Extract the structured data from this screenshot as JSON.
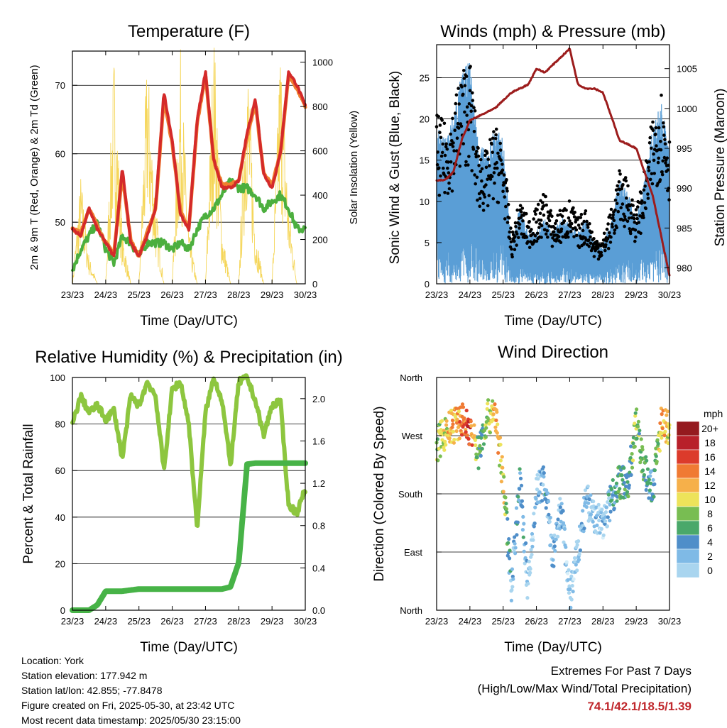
{
  "x_ticks": [
    "23/23",
    "24/23",
    "25/23",
    "26/23",
    "27/23",
    "28/23",
    "29/23",
    "30/23"
  ],
  "colors": {
    "t2m": "#d42a2a",
    "t9m": "#f07f2f",
    "td": "#4caf3e",
    "solar": "#f5d65a",
    "wind": "#5a9ed6",
    "gust": "#000000",
    "pressure": "#9c1c1c",
    "rh": "#8dc63f",
    "precip": "#47b347"
  },
  "info": {
    "location": "Location: York",
    "elevation": "Station elevation: 177.942 m",
    "latlon": "Station lat/lon: 42.855; -77.8478",
    "created": "Figure created on Fri, 2025-05-30, at 23:42 UTC",
    "timestamp": "Most recent data timestamp: 2025/05/30 23:15:00"
  },
  "extremes": {
    "title": "Extremes For Past 7 Days",
    "subtitle": "(High/Low/Max Wind/Total Precipitation)",
    "value": "74.1/42.1/18.5/1.39"
  },
  "chart_data": [
    {
      "type": "line",
      "title": "Temperature (F)",
      "xlabel": "Time (Day/UTC)",
      "ylabel": "2m & 9m T (Red, Orange) & 2m Td (Green)",
      "ylabel_right": "Solar Insolation (Yellow)",
      "x": [
        0,
        0.25,
        0.5,
        0.75,
        1.0,
        1.25,
        1.5,
        1.75,
        2.0,
        2.25,
        2.5,
        2.75,
        3.0,
        3.25,
        3.5,
        3.75,
        4.0,
        4.25,
        4.5,
        4.75,
        5.0,
        5.25,
        5.5,
        5.75,
        6.0,
        6.25,
        6.5,
        6.75,
        7.0
      ],
      "ylim": [
        41,
        75
      ],
      "ylim_right": [
        0,
        1050
      ],
      "yticks": [
        50,
        60,
        70
      ],
      "yticks_right": [
        0,
        200,
        400,
        600,
        800,
        1000
      ],
      "series": [
        {
          "name": "2m T",
          "values": [
            49,
            48,
            52,
            49,
            47,
            45,
            58,
            47,
            45,
            48,
            52,
            69,
            62,
            51,
            49,
            65,
            72,
            59,
            55,
            55,
            56,
            63,
            68,
            57,
            55,
            60,
            72,
            70,
            67
          ]
        },
        {
          "name": "9m T",
          "values": [
            49,
            48.5,
            52,
            49.5,
            47,
            45.5,
            57,
            47.5,
            45,
            48.5,
            52,
            68,
            61.5,
            51.5,
            49,
            64.5,
            71.5,
            59,
            55.5,
            55.5,
            56,
            62.5,
            67.5,
            57,
            55.5,
            60,
            71.5,
            69.5,
            67
          ]
        },
        {
          "name": "2m Td",
          "values": [
            43,
            46,
            48,
            50,
            46,
            44,
            48,
            47,
            45,
            47,
            47,
            47,
            46,
            47,
            46,
            49,
            51,
            52,
            54,
            56,
            55,
            55,
            54,
            52,
            53,
            54,
            52,
            49,
            49
          ]
        },
        {
          "name": "Solar Insolation",
          "values": [
            0,
            400,
            100,
            0,
            0,
            850,
            200,
            0,
            0,
            850,
            300,
            0,
            0,
            850,
            200,
            0,
            0,
            950,
            200,
            0,
            0,
            900,
            200,
            0,
            0,
            900,
            300,
            0,
            0
          ]
        }
      ]
    },
    {
      "type": "scatter",
      "title": "Winds (mph) & Pressure (mb)",
      "xlabel": "Time (Day/UTC)",
      "ylabel": "Sonic Wind & Gust (Blue, Black)",
      "ylabel_right": "Station Pressure (Maroon)",
      "x": [
        0,
        0.25,
        0.5,
        0.75,
        1.0,
        1.25,
        1.5,
        1.75,
        2.0,
        2.25,
        2.5,
        2.75,
        3.0,
        3.25,
        3.5,
        3.75,
        4.0,
        4.25,
        4.5,
        4.75,
        5.0,
        5.25,
        5.5,
        5.75,
        6.0,
        6.25,
        6.5,
        6.75,
        7.0
      ],
      "ylim": [
        0,
        29
      ],
      "ylim_right": [
        978,
        1008
      ],
      "yticks": [
        0,
        5,
        10,
        15,
        20,
        25
      ],
      "yticks_right": [
        980,
        985,
        990,
        995,
        1000,
        1005
      ],
      "series": [
        {
          "name": "Sonic Wind",
          "values": [
            12,
            11,
            13,
            16,
            17,
            11,
            10,
            12,
            11,
            3,
            6,
            4,
            4,
            5,
            4,
            5,
            5,
            4,
            5,
            3,
            3,
            5,
            8,
            7,
            5,
            8,
            12,
            14,
            10
          ]
        },
        {
          "name": "Gust",
          "values": [
            18,
            17,
            19,
            23,
            24,
            15,
            14,
            17,
            15,
            5,
            9,
            7,
            8,
            10,
            7,
            8,
            9,
            7,
            8,
            5,
            5,
            8,
            12,
            11,
            8,
            12,
            18,
            21,
            16
          ]
        },
        {
          "name": "Pressure",
          "values": [
            991,
            991,
            992,
            996,
            998.5,
            999,
            999.5,
            1000,
            1001,
            1002,
            1002.5,
            1003,
            1005,
            1004.5,
            1005.5,
            1006.5,
            1007.5,
            1003,
            1002.5,
            1002.5,
            1002,
            999,
            996,
            995.5,
            995,
            992,
            989,
            984,
            979
          ]
        }
      ]
    },
    {
      "type": "line",
      "title": "Relative Humidity (%) & Precipitation (in)",
      "xlabel": "Time (Day/UTC)",
      "ylabel": "Percent & Total Rainfall",
      "ylim": [
        0,
        100
      ],
      "ylim_right": [
        0,
        2.2
      ],
      "yticks": [
        0,
        20,
        40,
        60,
        80,
        100
      ],
      "yticks_right": [
        0.0,
        0.4,
        0.8,
        1.2,
        1.6,
        2.0
      ],
      "x": [
        0,
        0.25,
        0.5,
        0.75,
        1.0,
        1.25,
        1.5,
        1.75,
        2.0,
        2.25,
        2.5,
        2.75,
        3.0,
        3.25,
        3.5,
        3.75,
        4.0,
        4.25,
        4.5,
        4.75,
        5.0,
        5.25,
        5.5,
        5.75,
        6.0,
        6.25,
        6.5,
        6.75,
        7.0
      ],
      "series": [
        {
          "name": "RH",
          "values": [
            80,
            92,
            85,
            88,
            82,
            86,
            65,
            92,
            88,
            98,
            92,
            60,
            95,
            98,
            80,
            35,
            85,
            100,
            90,
            62,
            98,
            100,
            90,
            75,
            88,
            90,
            45,
            42,
            52
          ]
        },
        {
          "name": "Precip",
          "values": [
            0,
            0,
            0,
            0.05,
            0.18,
            0.18,
            0.18,
            0.19,
            0.2,
            0.2,
            0.2,
            0.2,
            0.2,
            0.2,
            0.2,
            0.2,
            0.2,
            0.2,
            0.2,
            0.22,
            0.45,
            1.38,
            1.39,
            1.39,
            1.39,
            1.39,
            1.39,
            1.39,
            1.39
          ]
        }
      ]
    },
    {
      "type": "scatter",
      "title": "Wind Direction",
      "xlabel": "Time (Day/UTC)",
      "ylabel": "Direction (Colored By Speed)",
      "ylim": [
        0,
        360
      ],
      "ytick_labels": [
        "North",
        "East",
        "South",
        "West",
        "North"
      ],
      "x": [
        0,
        0.25,
        0.5,
        0.75,
        1.0,
        1.25,
        1.5,
        1.75,
        2.0,
        2.25,
        2.5,
        2.75,
        3.0,
        3.25,
        3.5,
        3.75,
        4.0,
        4.25,
        4.5,
        4.75,
        5.0,
        5.25,
        5.5,
        5.75,
        6.0,
        6.25,
        6.5,
        6.75,
        7.0
      ],
      "series": [
        {
          "name": "Direction",
          "values": [
            255,
            275,
            285,
            295,
            280,
            245,
            295,
            310,
            200,
            40,
            200,
            30,
            185,
            200,
            80,
            160,
            20,
            90,
            170,
            145,
            130,
            175,
            200,
            195,
            290,
            215,
            185,
            290,
            280
          ]
        },
        {
          "name": "Speed",
          "values": [
            10,
            12,
            14,
            16,
            18,
            8,
            10,
            14,
            12,
            4,
            6,
            3,
            3,
            5,
            3,
            4,
            2,
            3,
            4,
            3,
            3,
            6,
            8,
            7,
            10,
            8,
            6,
            14,
            12
          ]
        }
      ],
      "legend": {
        "title": "mph",
        "labels": [
          "20+",
          "18",
          "16",
          "14",
          "12",
          "10",
          "8",
          "6",
          "4",
          "2",
          "0"
        ]
      }
    }
  ]
}
